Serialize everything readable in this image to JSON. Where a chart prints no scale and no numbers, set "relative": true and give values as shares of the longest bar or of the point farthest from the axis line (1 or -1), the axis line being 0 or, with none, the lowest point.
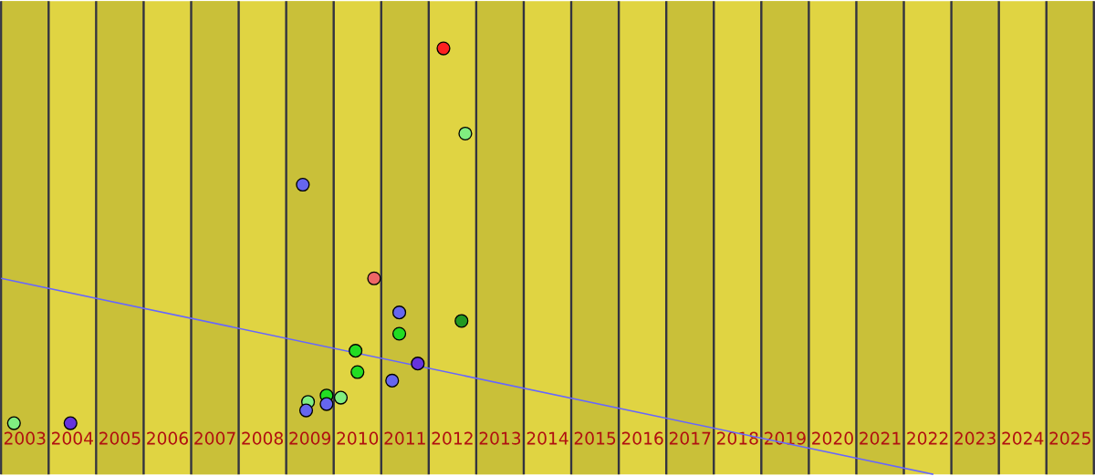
{
  "chart_data": {
    "type": "scatter",
    "relative": true,
    "xlim": [
      2002.5,
      2025.5
    ],
    "xticks": [
      2003,
      2004,
      2005,
      2006,
      2007,
      2008,
      2009,
      2010,
      2011,
      2012,
      2013,
      2014,
      2015,
      2016,
      2017,
      2018,
      2019,
      2020,
      2021,
      2022,
      2023,
      2024,
      2025
    ],
    "bands": [
      {
        "axis": "x",
        "from": 2002.5,
        "to": 2003.5,
        "color": "#c9c039"
      },
      {
        "axis": "x",
        "from": 2004.5,
        "to": 2005.5,
        "color": "#c9c039"
      },
      {
        "axis": "x",
        "from": 2006.5,
        "to": 2007.5,
        "color": "#c9c039"
      },
      {
        "axis": "x",
        "from": 2008.5,
        "to": 2009.5,
        "color": "#c9c039"
      },
      {
        "axis": "x",
        "from": 2010.5,
        "to": 2011.5,
        "color": "#c9c039"
      },
      {
        "axis": "x",
        "from": 2012.5,
        "to": 2013.5,
        "color": "#c9c039"
      },
      {
        "axis": "x",
        "from": 2014.5,
        "to": 2015.5,
        "color": "#c9c039"
      },
      {
        "axis": "x",
        "from": 2016.5,
        "to": 2017.5,
        "color": "#c9c039"
      },
      {
        "axis": "x",
        "from": 2018.5,
        "to": 2019.5,
        "color": "#c9c039"
      },
      {
        "axis": "x",
        "from": 2020.5,
        "to": 2021.5,
        "color": "#c9c039"
      },
      {
        "axis": "x",
        "from": 2022.5,
        "to": 2023.5,
        "color": "#c9c039"
      },
      {
        "axis": "x",
        "from": 2024.5,
        "to": 2025.5,
        "color": "#c9c039"
      }
    ],
    "series": [
      {
        "x": [
          2011.81,
          2012.27,
          2008.85,
          2010.35,
          2010.88,
          2010.88,
          2012.19,
          2009.96,
          2010.0,
          2011.27,
          2010.73,
          2009.65,
          2009.35,
          2009.35,
          2008.96,
          2008.92,
          2002.77,
          2003.96
        ],
        "values": [
          1.0,
          0.8,
          0.68,
          0.46,
          0.38,
          0.33,
          0.36,
          0.29,
          0.24,
          0.26,
          0.22,
          0.18,
          0.185,
          0.165,
          0.17,
          0.15,
          0.12,
          0.12
        ],
        "colors": [
          "#ff2020",
          "#80ee80",
          "#6666ee",
          "#ee6666",
          "#6666ee",
          "#22dd22",
          "#229922",
          "#22dd22",
          "#22dd22",
          "#6633dd",
          "#6666ee",
          "#80ee80",
          "#22dd22",
          "#6666ee",
          "#80ee80",
          "#6666ee",
          "#80ee80",
          "#6633dd"
        ]
      },
      {
        "type": "line",
        "x": [
          2002.5,
          2022.12
        ],
        "values": [
          0.46,
          0.0
        ],
        "color": "#6666ff"
      }
    ]
  }
}
